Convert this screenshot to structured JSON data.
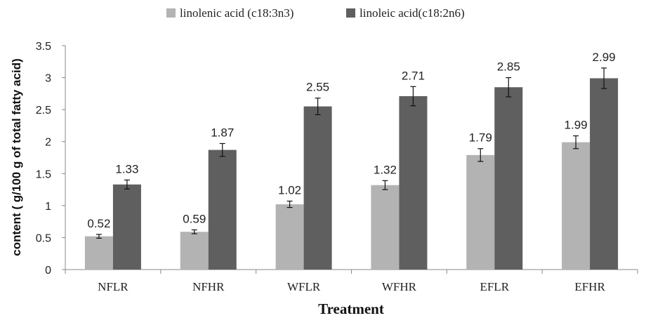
{
  "chart_data": {
    "type": "bar",
    "categories": [
      "NFLR",
      "NFHR",
      "WFLR",
      "WFHR",
      "EFLR",
      "EFHR"
    ],
    "series": [
      {
        "name": "linolenic acid (c18:3n3)",
        "values": [
          0.52,
          0.59,
          1.02,
          1.32,
          1.79,
          1.99
        ],
        "errors": [
          0.03,
          0.03,
          0.05,
          0.07,
          0.1,
          0.1
        ],
        "labels": [
          "0.52",
          "0.59",
          "1.02",
          "1.32",
          "1.79",
          "1.99"
        ],
        "color": "#b3b3b3"
      },
      {
        "name": "linoleic acid(c18:2n6)",
        "values": [
          1.33,
          1.87,
          2.55,
          2.71,
          2.85,
          2.99
        ],
        "errors": [
          0.07,
          0.1,
          0.13,
          0.15,
          0.15,
          0.16
        ],
        "labels": [
          "1.33",
          "1.87",
          "2.55",
          "2.71",
          "2.85",
          "2.99"
        ],
        "color": "#5f5f5f"
      }
    ],
    "xlabel": "Treatment",
    "ylabel": "content ( g/100 g of total fatty acid)",
    "ylim": [
      0,
      3.5
    ],
    "yticks": [
      "0",
      "0.5",
      "1",
      "1.5",
      "2",
      "2.5",
      "3",
      "3.5"
    ],
    "ytick_values": [
      0,
      0.5,
      1,
      1.5,
      2,
      2.5,
      3,
      3.5
    ],
    "grid": false,
    "legend_position": "top-center"
  }
}
